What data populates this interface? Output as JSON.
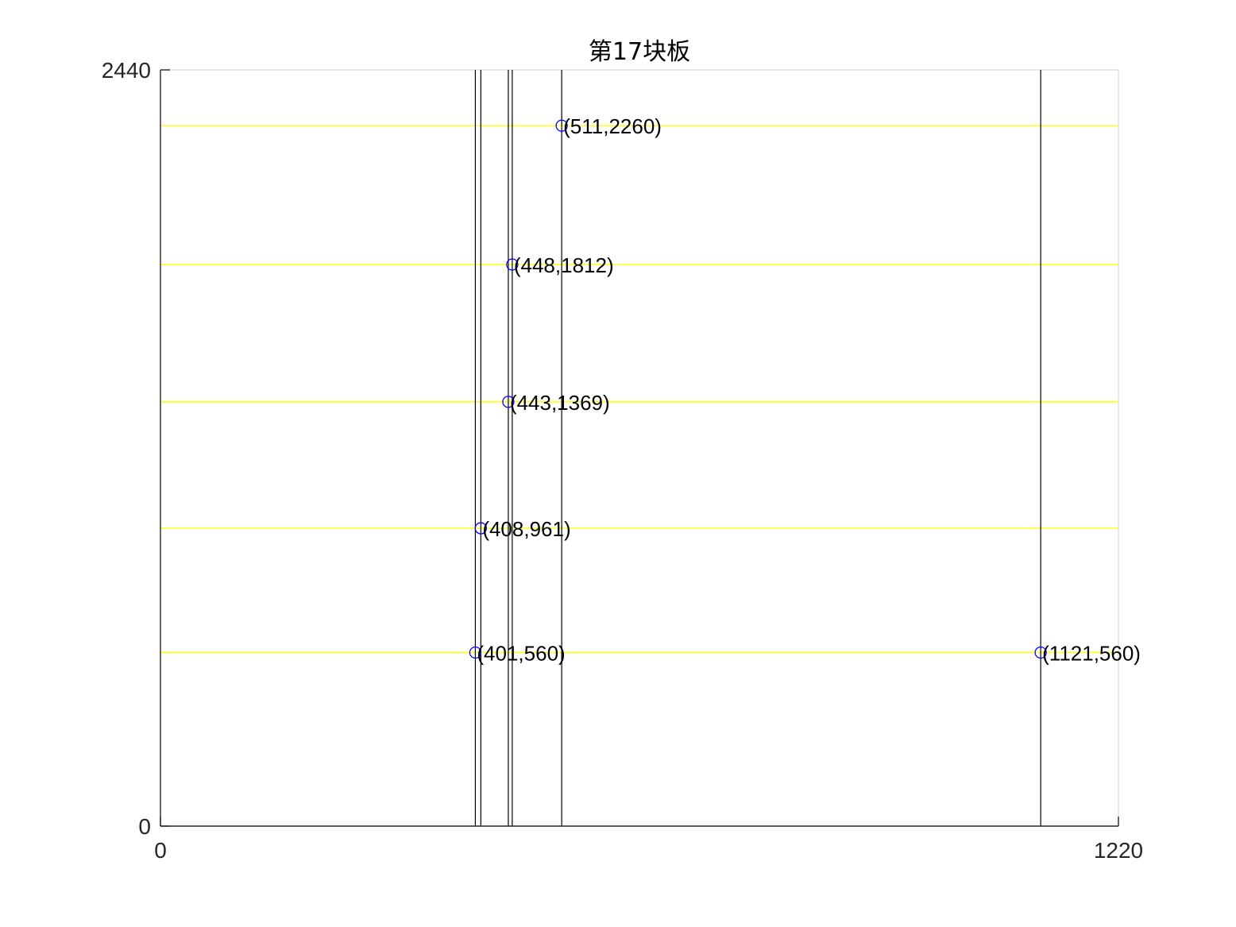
{
  "chart_data": {
    "type": "scatter",
    "title": "第17块板",
    "xlabel": "",
    "ylabel": "",
    "xlim": [
      0,
      1220
    ],
    "ylim": [
      0,
      2440
    ],
    "x_ticks": [
      0,
      1220
    ],
    "y_ticks": [
      0,
      2440
    ],
    "grid": false,
    "points": [
      {
        "x": 511,
        "y": 2260,
        "label": "(511,2260)"
      },
      {
        "x": 448,
        "y": 1812,
        "label": "(448,1812)"
      },
      {
        "x": 443,
        "y": 1369,
        "label": "(443,1369)"
      },
      {
        "x": 408,
        "y": 961,
        "label": "(408,961)"
      },
      {
        "x": 401,
        "y": 560,
        "label": "(401,560)"
      },
      {
        "x": 1121,
        "y": 560,
        "label": "(1121,560)"
      }
    ],
    "vertical_lines_x": [
      401,
      408,
      443,
      448,
      511,
      1121
    ],
    "horizontal_lines_y": [
      560,
      961,
      1369,
      1812,
      2260
    ],
    "colors": {
      "horizontal_lines": "#ffff00",
      "vertical_lines": "#000000",
      "markers": "#0000ff",
      "axes": "#262626",
      "box": "#d9d9d9"
    }
  }
}
